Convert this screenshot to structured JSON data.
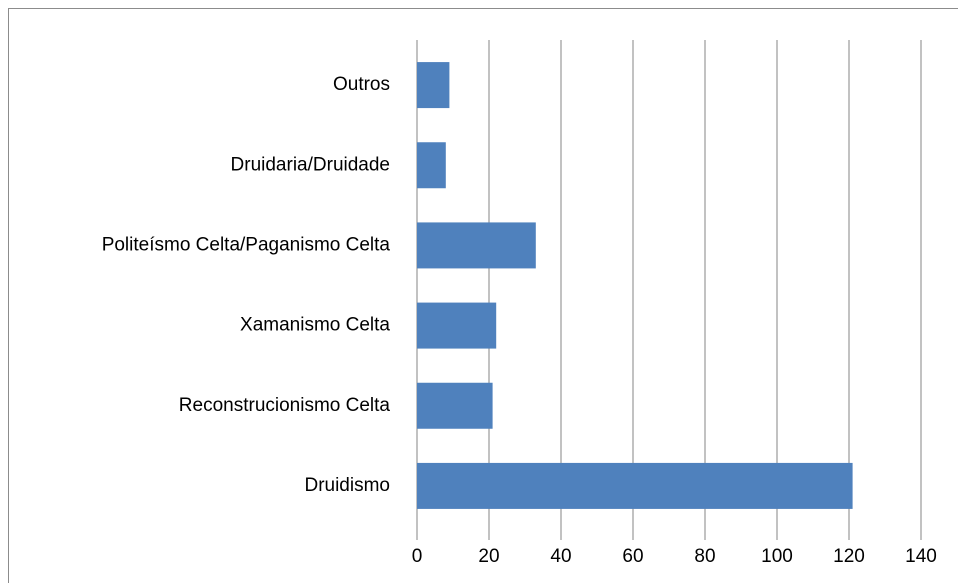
{
  "chart_data": {
    "type": "bar",
    "orientation": "horizontal",
    "categories": [
      "Druidismo",
      "Reconstrucionismo Celta",
      "Xamanismo Celta",
      "Politeísmo Celta/Paganismo Celta",
      "Druidaria/Druidade",
      "Outros"
    ],
    "values": [
      121,
      21,
      22,
      33,
      8,
      9
    ],
    "color": "#4f81bd",
    "xlim": [
      0,
      140
    ],
    "xticks": [
      0,
      20,
      40,
      60,
      80,
      100,
      120,
      140
    ],
    "grid": true
  }
}
